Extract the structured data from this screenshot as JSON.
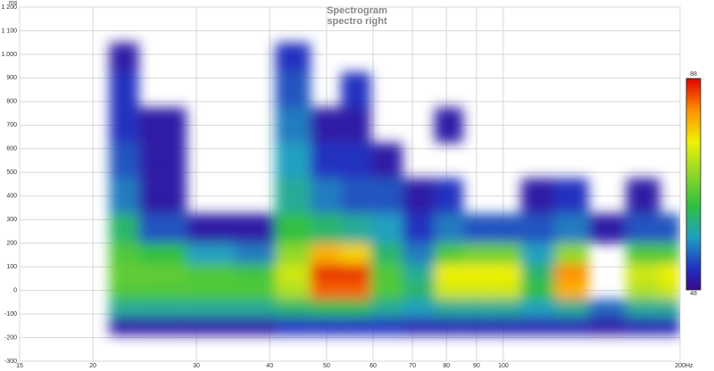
{
  "chart_data": {
    "type": "heatmap",
    "title": "Spectrogram",
    "subtitle": "spectro right",
    "x_unit": "Hz",
    "y_unit": "ms",
    "xlog": true,
    "grid": true,
    "xlim": [
      15,
      200
    ],
    "xticks": [
      15,
      20,
      30,
      40,
      50,
      60,
      70,
      80,
      90,
      100,
      200
    ],
    "ylim": [
      -300,
      1200
    ],
    "yticks": [
      {
        "value": 1200,
        "label": "1 200"
      },
      {
        "value": 1100,
        "label": "1 100"
      },
      {
        "value": 1000,
        "label": "1.000"
      },
      900,
      800,
      700,
      600,
      500,
      400,
      300,
      200,
      100,
      0,
      -100,
      -200,
      -300
    ],
    "zlim": [
      48,
      88
    ],
    "x": [
      22,
      26,
      32,
      38,
      44,
      50,
      56,
      63,
      72,
      81,
      90,
      100,
      115,
      130,
      150,
      175,
      195
    ],
    "y": [
      -150,
      -75,
      0,
      75,
      150,
      250,
      400,
      550,
      700,
      850,
      1000
    ],
    "z": [
      [
        50,
        50,
        50,
        50,
        52,
        52,
        52,
        52,
        51,
        51,
        51,
        51,
        51,
        51,
        50,
        51,
        51
      ],
      [
        60,
        60,
        60,
        60,
        62,
        63,
        63,
        60,
        58,
        60,
        60,
        60,
        58,
        60,
        55,
        60,
        60
      ],
      [
        66,
        66,
        66,
        66,
        72,
        84,
        84,
        66,
        62,
        74,
        74,
        74,
        64,
        80,
        null,
        72,
        74
      ],
      [
        67,
        67,
        66,
        65,
        74,
        86,
        86,
        66,
        60,
        76,
        76,
        76,
        62,
        82,
        null,
        74,
        76
      ],
      [
        66,
        64,
        58,
        56,
        70,
        80,
        78,
        62,
        56,
        66,
        68,
        68,
        58,
        70,
        null,
        66,
        66
      ],
      [
        62,
        54,
        50,
        50,
        64,
        62,
        60,
        58,
        52,
        56,
        54,
        54,
        54,
        56,
        50,
        54,
        54
      ],
      [
        56,
        50,
        null,
        null,
        60,
        56,
        54,
        54,
        50,
        52,
        null,
        null,
        50,
        52,
        null,
        50,
        null
      ],
      [
        54,
        50,
        null,
        null,
        58,
        52,
        52,
        50,
        null,
        null,
        null,
        null,
        null,
        null,
        null,
        null,
        null
      ],
      [
        52,
        50,
        null,
        null,
        56,
        50,
        50,
        null,
        null,
        50,
        null,
        null,
        null,
        null,
        null,
        null,
        null
      ],
      [
        52,
        null,
        null,
        null,
        54,
        null,
        52,
        null,
        null,
        null,
        null,
        null,
        null,
        null,
        null,
        null,
        null
      ],
      [
        50,
        null,
        null,
        null,
        52,
        null,
        null,
        null,
        null,
        null,
        null,
        null,
        null,
        null,
        null,
        null,
        null
      ]
    ]
  }
}
